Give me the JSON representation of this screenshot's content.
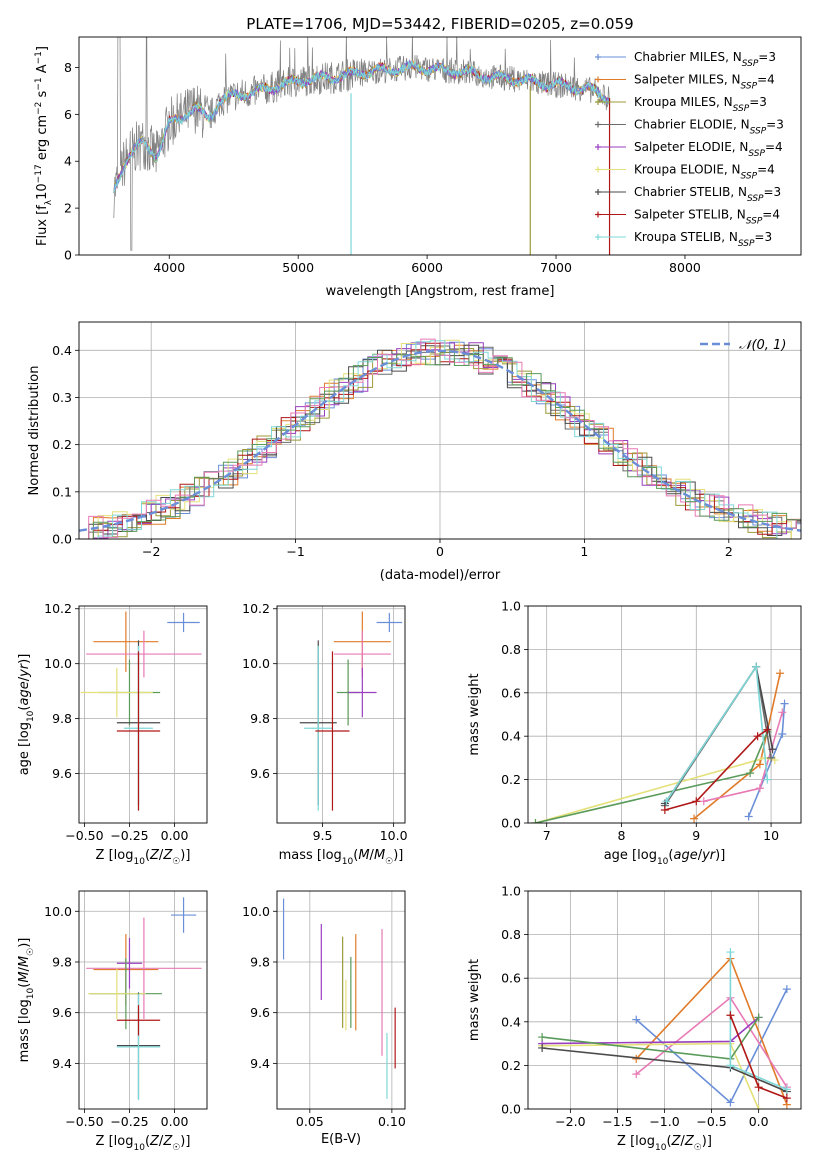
{
  "figure_title": "PLATE=1706, MJD=53442, FIBERID=0205, z=0.059",
  "colors": {
    "blue": "#6a8fd8",
    "orange": "#e07b2a",
    "olive": "#9c9a3a",
    "gray": "#6b6b6b",
    "purple": "#9a3fbf",
    "yellow": "#e4e07a",
    "dark": "#4a4a4a",
    "red": "#b01818",
    "cyan": "#7fd8d8",
    "pink": "#e87ab5",
    "green": "#5a9a5a",
    "dataGray": "#808080"
  },
  "chart_data": [
    {
      "id": "spectrum",
      "type": "line",
      "title": "PLATE=1706, MJD=53442, FIBERID=0205, z=0.059",
      "xlabel": "wavelength [Angstrom, rest frame]",
      "ylabel": "Flux [f_λ 10^-17 erg cm^-2 s^-1 A^-1]",
      "xlim": [
        3300,
        8900
      ],
      "ylim": [
        0,
        9.3
      ],
      "xticks": [
        4000,
        5000,
        6000,
        7000,
        8000
      ],
      "yticks": [
        0,
        2,
        4,
        6,
        8
      ],
      "grid": false,
      "legend_position": "right",
      "continuum": {
        "x": [
          3570,
          3650,
          3700,
          3800,
          3900,
          4000,
          4100,
          4200,
          4300,
          4400,
          4500,
          4700,
          4900,
          5100,
          5300,
          5500,
          5700,
          5900,
          6100,
          6300,
          6500,
          6700,
          6900,
          7100,
          7300,
          7400
        ],
        "y": [
          2.7,
          3.9,
          4.4,
          4.8,
          4.2,
          5.6,
          5.9,
          6.3,
          5.8,
          6.6,
          6.8,
          7.0,
          7.3,
          7.5,
          7.6,
          7.8,
          7.9,
          8.0,
          7.9,
          7.8,
          7.6,
          7.5,
          7.3,
          7.2,
          7.0,
          6.7
        ]
      },
      "series": [
        {
          "name": "Chabrier MILES, N_SSP=3",
          "color": "blue",
          "marker": "+"
        },
        {
          "name": "Salpeter MILES, N_SSP=4",
          "color": "orange",
          "marker": "+"
        },
        {
          "name": "Kroupa MILES, N_SSP=3",
          "color": "olive",
          "marker": "+"
        },
        {
          "name": "Chabrier ELODIE, N_SSP=3",
          "color": "gray",
          "marker": "+"
        },
        {
          "name": "Salpeter ELODIE, N_SSP=4",
          "color": "purple",
          "marker": "+"
        },
        {
          "name": "Kroupa ELODIE, N_SSP=4",
          "color": "yellow",
          "marker": "+"
        },
        {
          "name": "Chabrier STELIB, N_SSP=3",
          "color": "dark",
          "marker": "+"
        },
        {
          "name": "Salpeter STELIB, N_SSP=4",
          "color": "red",
          "marker": "+"
        },
        {
          "name": "Kroupa STELIB, N_SSP=3",
          "color": "cyan",
          "marker": "+"
        }
      ]
    },
    {
      "id": "residuals",
      "type": "line",
      "xlabel": "(data-model)/error",
      "ylabel": "Normed distribution",
      "xlim": [
        -2.5,
        2.5
      ],
      "ylim": [
        0,
        0.46
      ],
      "xticks": [
        -2,
        -1,
        0,
        1,
        2
      ],
      "xticklabels": [
        "−2",
        "−1",
        "0",
        "1",
        "2"
      ],
      "yticks": [
        0,
        0.1,
        0.2,
        0.3,
        0.4
      ],
      "yticklabels": [
        "0.0",
        "0.1",
        "0.2",
        "0.3",
        "0.4"
      ],
      "grid": true,
      "legend_position": "top-right",
      "legend_label": "𝒩(0, 1)",
      "bin_width": 0.1,
      "series_colors": [
        "blue",
        "orange",
        "olive",
        "gray",
        "purple",
        "yellow",
        "dark",
        "red",
        "cyan",
        "pink",
        "green"
      ]
    },
    {
      "id": "age_vs_z",
      "type": "scatter",
      "xlabel": "Z [log10(Z/Z☉)]",
      "ylabel": "age [log10(age/yr)]",
      "xlim": [
        -0.53,
        0.18
      ],
      "ylim": [
        9.42,
        10.21
      ],
      "xticks": [
        -0.5,
        -0.25,
        0.0
      ],
      "xticklabels": [
        "−0.50",
        "−0.25",
        "0.00"
      ],
      "yticks": [
        9.6,
        9.8,
        10.0,
        10.2
      ],
      "yticklabels": [
        "9.6",
        "9.8",
        "10.0",
        "10.2"
      ],
      "grid": true,
      "points": [
        {
          "x": 0.05,
          "y": 10.15,
          "xerr": 0.09,
          "yerr": 0.035,
          "color": "blue"
        },
        {
          "x": -0.27,
          "y": 10.08,
          "xerr": 0.18,
          "yerr": 0.11,
          "color": "orange"
        },
        {
          "x": -0.17,
          "y": 10.035,
          "xerr": 0.32,
          "yerr": 0.085,
          "color": "pink"
        },
        {
          "x": -0.25,
          "y": 9.895,
          "xerr": 0.17,
          "yerr": 0.12,
          "color": "green"
        },
        {
          "x": -0.32,
          "y": 9.895,
          "xerr": 0.2,
          "yerr": 0.09,
          "color": "yellow"
        },
        {
          "x": -0.2,
          "y": 9.785,
          "xerr": 0.12,
          "yerr": 0.3,
          "color": "dark"
        },
        {
          "x": -0.2,
          "y": 9.765,
          "xerr": 0.08,
          "yerr": 0.3,
          "color": "cyan"
        },
        {
          "x": -0.2,
          "y": 9.755,
          "xerr": 0.12,
          "yerr": 0.29,
          "color": "red"
        }
      ]
    },
    {
      "id": "age_vs_mass",
      "type": "scatter",
      "xlabel": "mass [log10(M/M☉)]",
      "xlim": [
        9.18,
        10.08
      ],
      "ylim": [
        9.42,
        10.21
      ],
      "xticks": [
        9.5,
        10.0
      ],
      "xticklabels": [
        "9.5",
        "10.0"
      ],
      "yticks": [
        9.6,
        9.8,
        10.0,
        10.2
      ],
      "yticklabels": [
        "9.6",
        "9.8",
        "10.0",
        "10.2"
      ],
      "grid": true,
      "points": [
        {
          "x": 9.97,
          "y": 10.15,
          "xerr": 0.09,
          "yerr": 0.035,
          "color": "blue"
        },
        {
          "x": 9.78,
          "y": 10.08,
          "xerr": 0.2,
          "yerr": 0.11,
          "color": "orange"
        },
        {
          "x": 9.78,
          "y": 10.035,
          "xerr": 0.2,
          "yerr": 0.085,
          "color": "pink"
        },
        {
          "x": 9.68,
          "y": 9.895,
          "xerr": 0.08,
          "yerr": 0.12,
          "color": "green"
        },
        {
          "x": 9.78,
          "y": 9.895,
          "xerr": 0.1,
          "yerr": 0.09,
          "color": "purple"
        },
        {
          "x": 9.47,
          "y": 9.785,
          "xerr": 0.13,
          "yerr": 0.3,
          "color": "dark"
        },
        {
          "x": 9.47,
          "y": 9.765,
          "xerr": 0.1,
          "yerr": 0.3,
          "color": "cyan"
        },
        {
          "x": 9.57,
          "y": 9.755,
          "xerr": 0.12,
          "yerr": 0.29,
          "color": "red"
        }
      ]
    },
    {
      "id": "mass_weight_vs_age",
      "type": "line",
      "xlabel": "age [log10(age/yr)]",
      "ylabel": "mass weight",
      "xlim": [
        6.75,
        10.4
      ],
      "ylim": [
        0,
        1.0
      ],
      "xticks": [
        7,
        8,
        9,
        10
      ],
      "yticks": [
        0.0,
        0.2,
        0.4,
        0.6,
        0.8,
        1.0
      ],
      "yticklabels": [
        "0.0",
        "0.2",
        "0.4",
        "0.6",
        "0.8",
        "1.0"
      ],
      "grid": true,
      "series": [
        {
          "color": "blue",
          "x": [
            9.7,
            10.15,
            10.18
          ],
          "y": [
            0.03,
            0.41,
            0.55
          ]
        },
        {
          "color": "orange",
          "x": [
            8.97,
            9.85,
            10.12
          ],
          "y": [
            0.02,
            0.27,
            0.69
          ]
        },
        {
          "color": "pink",
          "x": [
            9.1,
            9.85,
            10.15
          ],
          "y": [
            0.1,
            0.16,
            0.51
          ]
        },
        {
          "color": "yellow",
          "x": [
            6.85,
            9.92,
            10.05
          ],
          "y": [
            0.0,
            0.3,
            0.29
          ]
        },
        {
          "color": "green",
          "x": [
            6.85,
            9.72,
            9.95
          ],
          "y": [
            0.0,
            0.23,
            0.42
          ]
        },
        {
          "color": "gray",
          "x": [
            8.58,
            9.8,
            10.0
          ],
          "y": [
            0.08,
            0.72,
            0.3
          ]
        },
        {
          "color": "dark",
          "x": [
            8.58,
            9.8,
            10.02
          ],
          "y": [
            0.09,
            0.72,
            0.34
          ]
        },
        {
          "color": "cyan",
          "x": [
            8.6,
            9.8,
            9.95
          ],
          "y": [
            0.1,
            0.72,
            0.2
          ]
        },
        {
          "color": "red",
          "x": [
            8.58,
            9.0,
            9.82,
            9.95
          ],
          "y": [
            0.06,
            0.1,
            0.4,
            0.43
          ]
        }
      ]
    },
    {
      "id": "mass_vs_z",
      "type": "scatter",
      "xlabel": "Z [log10(Z/Z☉)]",
      "ylabel": "mass [log10(M/M☉)]",
      "xlim": [
        -0.53,
        0.18
      ],
      "ylim": [
        9.22,
        10.08
      ],
      "xticks": [
        -0.5,
        -0.25,
        0.0
      ],
      "xticklabels": [
        "−0.50",
        "−0.25",
        "0.00"
      ],
      "yticks": [
        9.4,
        9.6,
        9.8,
        10.0
      ],
      "yticklabels": [
        "9.4",
        "9.6",
        "9.8",
        "10.0"
      ],
      "grid": true,
      "points": [
        {
          "x": 0.05,
          "y": 9.985,
          "xerr": 0.07,
          "yerr": 0.07,
          "color": "blue"
        },
        {
          "x": -0.27,
          "y": 9.77,
          "xerr": 0.18,
          "yerr": 0.14,
          "color": "orange"
        },
        {
          "x": -0.17,
          "y": 9.775,
          "xerr": 0.32,
          "yerr": 0.2,
          "color": "pink"
        },
        {
          "x": -0.25,
          "y": 9.795,
          "xerr": 0.07,
          "yerr": 0.1,
          "color": "purple"
        },
        {
          "x": -0.27,
          "y": 9.675,
          "xerr": 0.2,
          "yerr": 0.14,
          "color": "green"
        },
        {
          "x": -0.32,
          "y": 9.675,
          "xerr": 0.16,
          "yerr": 0.1,
          "color": "yellow"
        },
        {
          "x": -0.2,
          "y": 9.47,
          "xerr": 0.12,
          "yerr": 0.21,
          "color": "dark"
        },
        {
          "x": -0.2,
          "y": 9.465,
          "xerr": 0.12,
          "yerr": 0.21,
          "color": "cyan"
        },
        {
          "x": -0.2,
          "y": 9.57,
          "xerr": 0.12,
          "yerr": 0.06,
          "color": "red"
        }
      ]
    },
    {
      "id": "mass_vs_ebv",
      "type": "scatter",
      "xlabel": "E(B-V)",
      "xlim": [
        0.03,
        0.108
      ],
      "ylim": [
        9.22,
        10.08
      ],
      "xticks": [
        0.05,
        0.1
      ],
      "xticklabels": [
        "0.05",
        "0.10"
      ],
      "yticks": [
        9.4,
        9.6,
        9.8,
        10.0
      ],
      "yticklabels": [
        "9.4",
        "9.6",
        "9.8",
        "10.0"
      ],
      "grid": true,
      "points": [
        {
          "x": 0.034,
          "y": 9.93,
          "yerr": 0.12,
          "color": "blue"
        },
        {
          "x": 0.057,
          "y": 9.8,
          "yerr": 0.15,
          "color": "purple"
        },
        {
          "x": 0.07,
          "y": 9.72,
          "yerr": 0.18,
          "color": "olive"
        },
        {
          "x": 0.072,
          "y": 9.63,
          "yerr": 0.1,
          "color": "yellow"
        },
        {
          "x": 0.075,
          "y": 9.68,
          "yerr": 0.14,
          "color": "green"
        },
        {
          "x": 0.078,
          "y": 9.72,
          "yerr": 0.19,
          "color": "orange"
        },
        {
          "x": 0.094,
          "y": 9.68,
          "yerr": 0.25,
          "color": "pink"
        },
        {
          "x": 0.097,
          "y": 9.39,
          "yerr": 0.13,
          "color": "cyan"
        },
        {
          "x": 0.102,
          "y": 9.5,
          "yerr": 0.12,
          "color": "red"
        }
      ]
    },
    {
      "id": "mass_weight_vs_z",
      "type": "line",
      "xlabel": "Z [log10(Z/Z☉)]",
      "ylabel": "mass weight",
      "xlim": [
        -2.45,
        0.45
      ],
      "ylim": [
        0,
        1.0
      ],
      "xticks": [
        -2.0,
        -1.5,
        -1.0,
        -0.5,
        0.0
      ],
      "xticklabels": [
        "−2.0",
        "−1.5",
        "−1.0",
        "−0.5",
        "0.0"
      ],
      "yticks": [
        0.0,
        0.2,
        0.4,
        0.6,
        0.8,
        1.0
      ],
      "yticklabels": [
        "0.0",
        "0.2",
        "0.4",
        "0.6",
        "0.8",
        "1.0"
      ],
      "grid": true,
      "series": [
        {
          "color": "blue",
          "x": [
            -1.3,
            -0.3,
            0.3
          ],
          "y": [
            0.41,
            0.03,
            0.55
          ]
        },
        {
          "color": "orange",
          "x": [
            -1.3,
            -0.3,
            0.3
          ],
          "y": [
            0.23,
            0.69,
            0.02
          ]
        },
        {
          "color": "pink",
          "x": [
            -1.3,
            -0.3,
            0.3
          ],
          "y": [
            0.16,
            0.51,
            0.1
          ]
        },
        {
          "color": "yellow",
          "x": [
            -2.3,
            -0.3,
            0.0
          ],
          "y": [
            0.29,
            0.3,
            0.0
          ]
        },
        {
          "color": "purple",
          "x": [
            -2.3,
            -0.3,
            0.0
          ],
          "y": [
            0.3,
            0.31,
            0.42
          ]
        },
        {
          "color": "green",
          "x": [
            -2.3,
            -0.3,
            0.0
          ],
          "y": [
            0.33,
            0.23,
            0.42
          ]
        },
        {
          "color": "dark",
          "x": [
            -2.3,
            -0.3,
            0.3
          ],
          "y": [
            0.28,
            0.19,
            0.08
          ]
        },
        {
          "color": "cyan",
          "x": [
            -0.3,
            -0.3,
            0.3
          ],
          "y": [
            0.72,
            0.2,
            0.09
          ]
        },
        {
          "color": "red",
          "x": [
            -0.3,
            0.0,
            0.3
          ],
          "y": [
            0.43,
            0.1,
            0.05
          ]
        }
      ]
    }
  ]
}
